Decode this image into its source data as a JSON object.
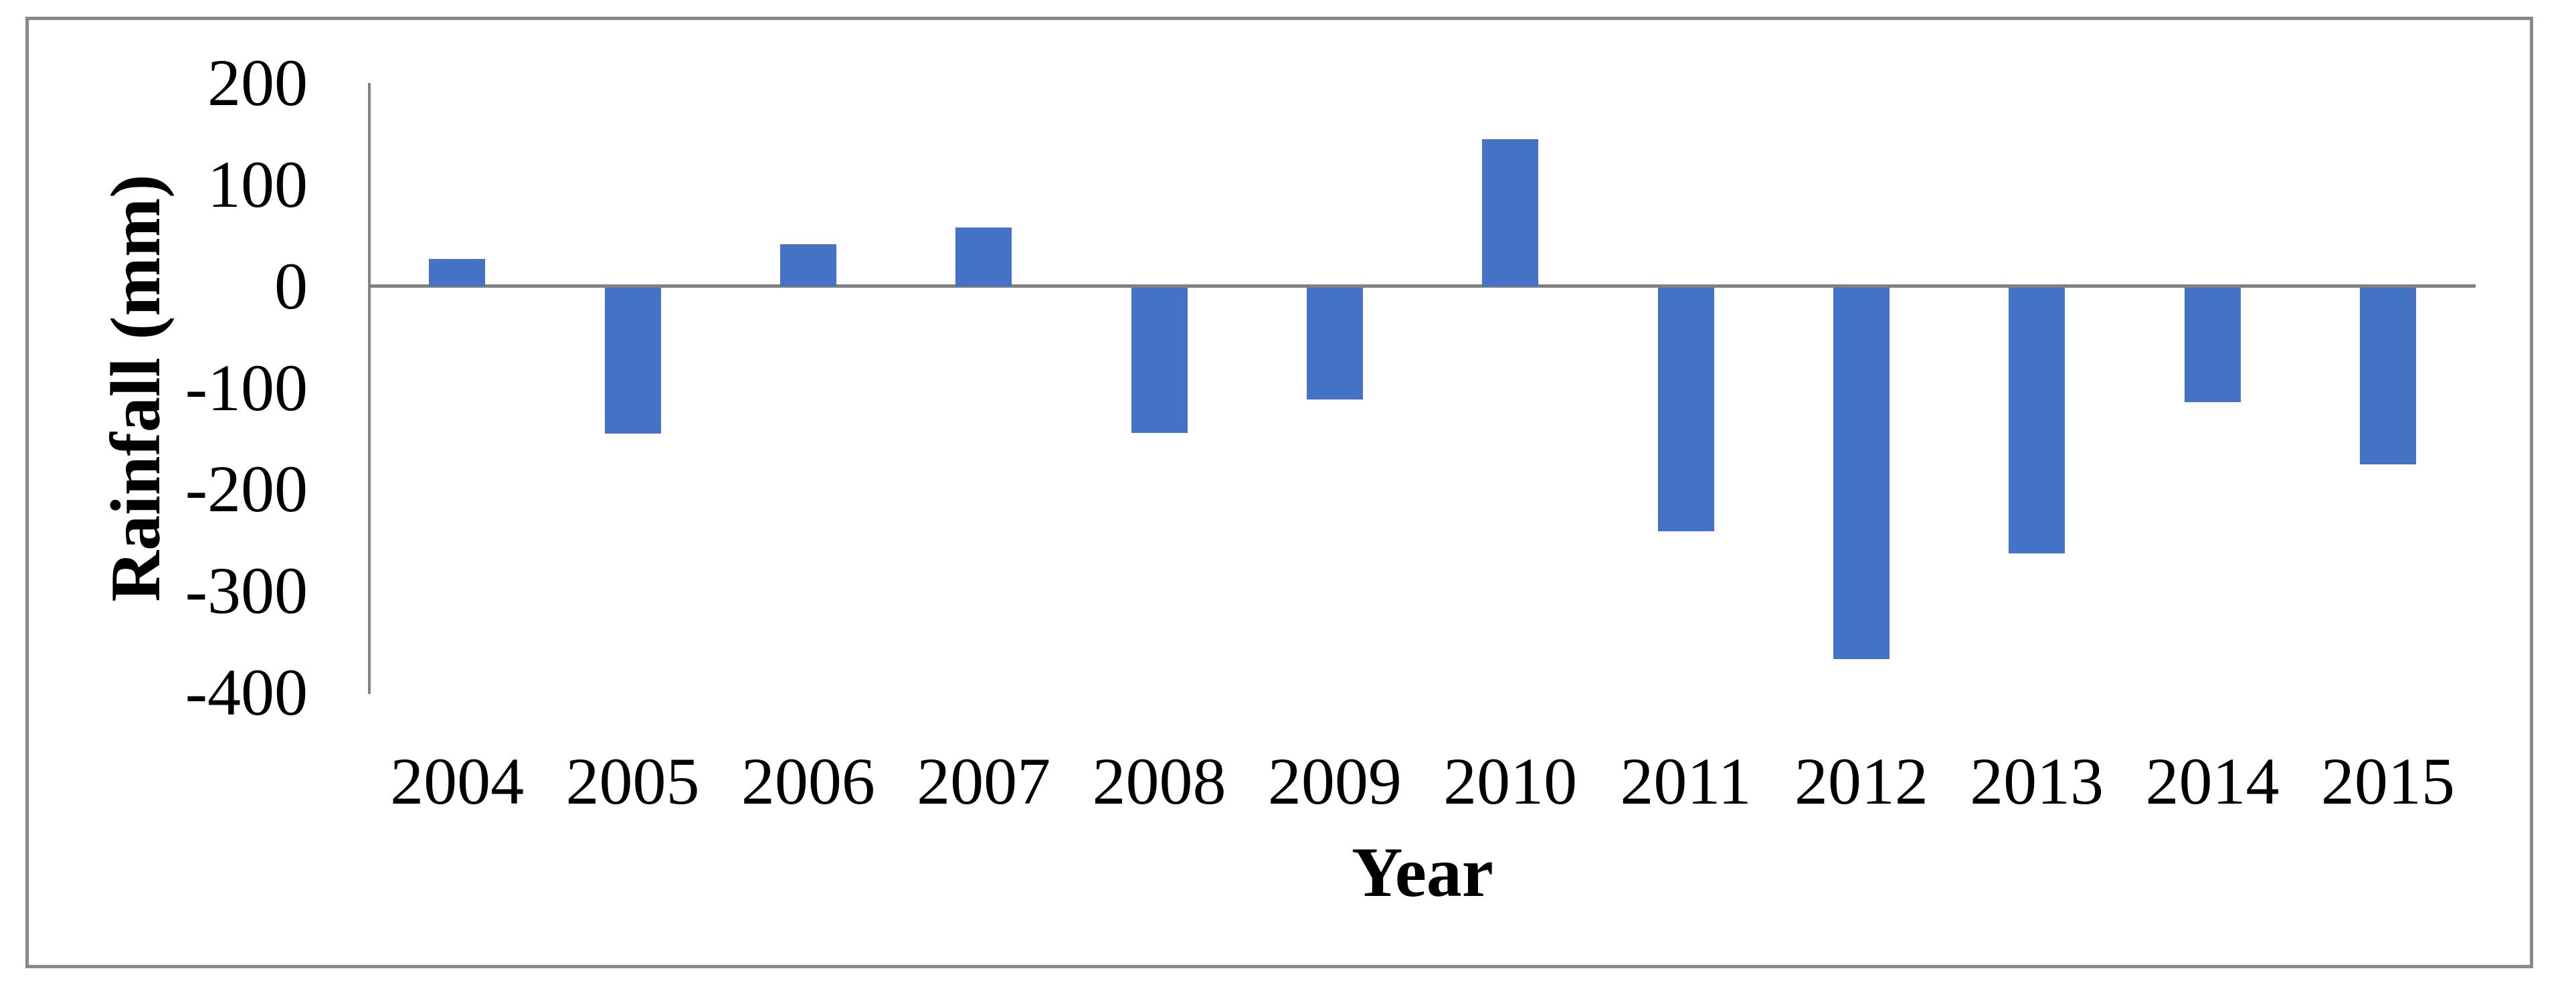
{
  "chart_data": {
    "type": "bar",
    "title": "",
    "categories": [
      "2004",
      "2005",
      "2006",
      "2007",
      "2008",
      "2009",
      "2010",
      "2011",
      "2012",
      "2013",
      "2014",
      "2015"
    ],
    "values": [
      27,
      -144,
      41,
      58,
      -143,
      -110,
      145,
      -240,
      -366,
      -262,
      -113,
      -174
    ],
    "xlabel": "Year",
    "ylabel": "Rainfall (mm)",
    "ylim": [
      -400,
      200
    ],
    "yticks": [
      200,
      100,
      0,
      -100,
      -200,
      -300,
      -400
    ],
    "grid": false,
    "legend": "none",
    "colors": {
      "bar": "#4472C4",
      "axis": "#808080",
      "frame": "#898989",
      "text": "#000000",
      "background": "#FFFFFF"
    }
  }
}
